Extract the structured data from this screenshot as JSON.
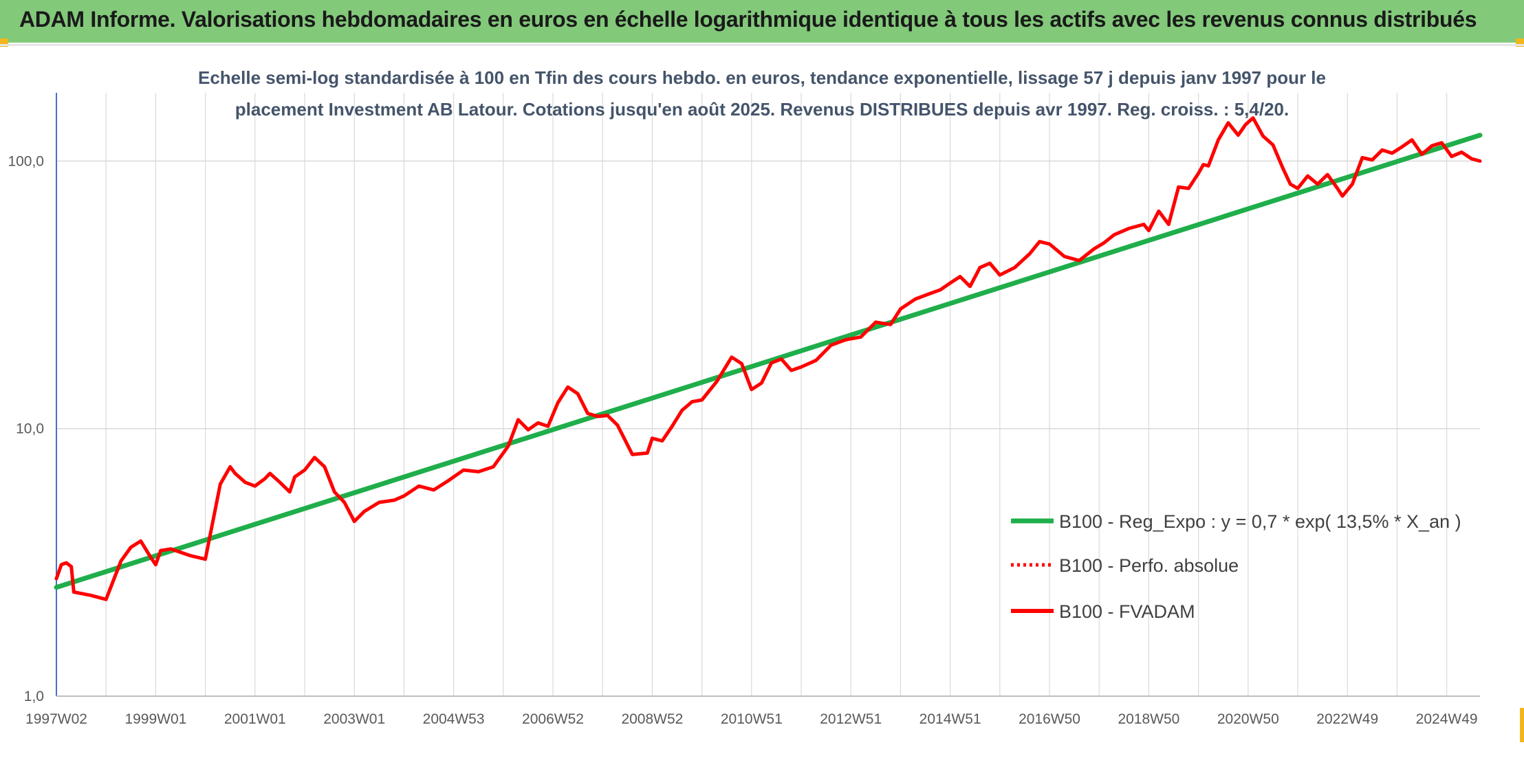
{
  "header": {
    "title": "ADAM Informe. Valorisations hebdomadaires en euros en échelle logarithmique identique à tous les actifs avec les revenus connus distribués"
  },
  "chart_data": {
    "type": "line",
    "title_lines": [
      "Echelle semi-log standardisée à 100 en Tfin des cours hebdo. en euros, tendance exponentielle, lissage 57 j depuis janv 1997 pour le",
      "placement Investment AB Latour. Cotations jusqu'en août 2025. Revenus DISTRIBUES depuis avr 1997. Reg. croiss. : 5,4/20."
    ],
    "y_scale": "log",
    "ylim": [
      1,
      180
    ],
    "xlim": [
      1997.0,
      2025.67
    ],
    "grid": true,
    "legend_position": "bottom-right",
    "y_ticks": [
      {
        "value": 1,
        "label": "1,0"
      },
      {
        "value": 10,
        "label": "10,0"
      },
      {
        "value": 100,
        "label": "100,0"
      }
    ],
    "x_ticks": [
      {
        "value": 1997.0,
        "label": "1997W02"
      },
      {
        "value": 1999.0,
        "label": "1999W01"
      },
      {
        "value": 2001.0,
        "label": "2001W01"
      },
      {
        "value": 2003.0,
        "label": "2003W01"
      },
      {
        "value": 2005.0,
        "label": "2004W53"
      },
      {
        "value": 2007.0,
        "label": "2006W52"
      },
      {
        "value": 2009.0,
        "label": "2008W52"
      },
      {
        "value": 2011.0,
        "label": "2010W51"
      },
      {
        "value": 2013.0,
        "label": "2012W51"
      },
      {
        "value": 2015.0,
        "label": "2014W51"
      },
      {
        "value": 2017.0,
        "label": "2016W50"
      },
      {
        "value": 2019.0,
        "label": "2018W50"
      },
      {
        "value": 2021.0,
        "label": "2020W50"
      },
      {
        "value": 2023.0,
        "label": "2022W49"
      },
      {
        "value": 2025.0,
        "label": "2024W49"
      }
    ],
    "series": [
      {
        "name": "B100 - Reg_Expo : y = 0,7 * exp( 13,5% *  X_an )",
        "color": "#1fae4b",
        "style": "solid",
        "x": [
          1997.0,
          2025.67
        ],
        "y": [
          2.55,
          125
        ]
      },
      {
        "name": "B100 - Perfo. absolue",
        "color": "#ff0000",
        "style": "dotted",
        "x": [],
        "y": []
      },
      {
        "name": "B100 - FVADAM",
        "color": "#ff0000",
        "style": "solid",
        "x": [
          1997.0,
          1997.1,
          1997.2,
          1997.3,
          1997.35,
          1997.5,
          1997.7,
          1998.0,
          1998.3,
          1998.5,
          1998.7,
          1998.9,
          1999.0,
          1999.1,
          1999.3,
          1999.5,
          1999.7,
          2000.0,
          2000.3,
          2000.5,
          2000.6,
          2000.8,
          2001.0,
          2001.2,
          2001.3,
          2001.5,
          2001.7,
          2001.8,
          2002.0,
          2002.2,
          2002.4,
          2002.6,
          2002.8,
          2003.0,
          2003.2,
          2003.5,
          2003.8,
          2004.0,
          2004.3,
          2004.6,
          2004.9,
          2005.2,
          2005.5,
          2005.8,
          2006.1,
          2006.3,
          2006.5,
          2006.7,
          2006.9,
          2007.1,
          2007.3,
          2007.5,
          2007.7,
          2007.9,
          2008.1,
          2008.3,
          2008.6,
          2008.9,
          2009.0,
          2009.2,
          2009.4,
          2009.6,
          2009.8,
          2010.0,
          2010.3,
          2010.6,
          2010.8,
          2011.0,
          2011.2,
          2011.4,
          2011.6,
          2011.8,
          2012.0,
          2012.3,
          2012.6,
          2012.9,
          2013.2,
          2013.5,
          2013.8,
          2014.0,
          2014.3,
          2014.6,
          2014.8,
          2015.0,
          2015.2,
          2015.4,
          2015.6,
          2015.8,
          2016.0,
          2016.3,
          2016.6,
          2016.8,
          2017.0,
          2017.3,
          2017.6,
          2017.9,
          2018.1,
          2018.3,
          2018.6,
          2018.9,
          2019.0,
          2019.2,
          2019.4,
          2019.6,
          2019.8,
          2020.0,
          2020.1,
          2020.2,
          2020.4,
          2020.6,
          2020.8,
          2020.95,
          2021.1,
          2021.3,
          2021.5,
          2021.7,
          2021.85,
          2022.0,
          2022.2,
          2022.4,
          2022.6,
          2022.8,
          2022.9,
          2023.1,
          2023.3,
          2023.5,
          2023.7,
          2023.9,
          2024.1,
          2024.3,
          2024.5,
          2024.7,
          2024.9,
          2025.1,
          2025.3,
          2025.5,
          2025.67
        ],
        "y": [
          2.75,
          3.1,
          3.15,
          3.05,
          2.45,
          2.42,
          2.38,
          2.3,
          3.2,
          3.6,
          3.8,
          3.3,
          3.1,
          3.5,
          3.55,
          3.45,
          3.35,
          3.25,
          6.2,
          7.2,
          6.8,
          6.3,
          6.1,
          6.5,
          6.8,
          6.3,
          5.8,
          6.6,
          7.0,
          7.8,
          7.2,
          5.8,
          5.3,
          4.5,
          4.9,
          5.3,
          5.4,
          5.6,
          6.1,
          5.9,
          6.4,
          7.0,
          6.9,
          7.2,
          8.6,
          10.8,
          9.9,
          10.5,
          10.2,
          12.5,
          14.3,
          13.5,
          11.4,
          11.1,
          11.2,
          10.3,
          8.0,
          8.1,
          9.2,
          9.0,
          10.2,
          11.7,
          12.6,
          12.8,
          15.0,
          18.5,
          17.5,
          14.0,
          14.8,
          17.6,
          18.2,
          16.5,
          17.0,
          18.0,
          20.5,
          21.5,
          22.0,
          25.0,
          24.5,
          28.0,
          30.5,
          32.0,
          33.0,
          35.0,
          37.0,
          34.0,
          40.0,
          41.5,
          37.5,
          40.0,
          45.0,
          50.0,
          49.0,
          44.0,
          42.5,
          47.0,
          49.5,
          53.0,
          56.0,
          58.0,
          55.0,
          65.0,
          58.0,
          80.0,
          79.0,
          90.0,
          97.0,
          96.0,
          120.0,
          139.0,
          125.0,
          137.0,
          145.0,
          124.0,
          115.0,
          94.0,
          82.0,
          79.0,
          88.0,
          82.0,
          89.0,
          79.0,
          74.0,
          82.0,
          103.0,
          101.0,
          110.0,
          107.0,
          113.0,
          120.0,
          106.0,
          114.0,
          117.0,
          104.0,
          108.0,
          102.0,
          100.0
        ]
      }
    ]
  }
}
